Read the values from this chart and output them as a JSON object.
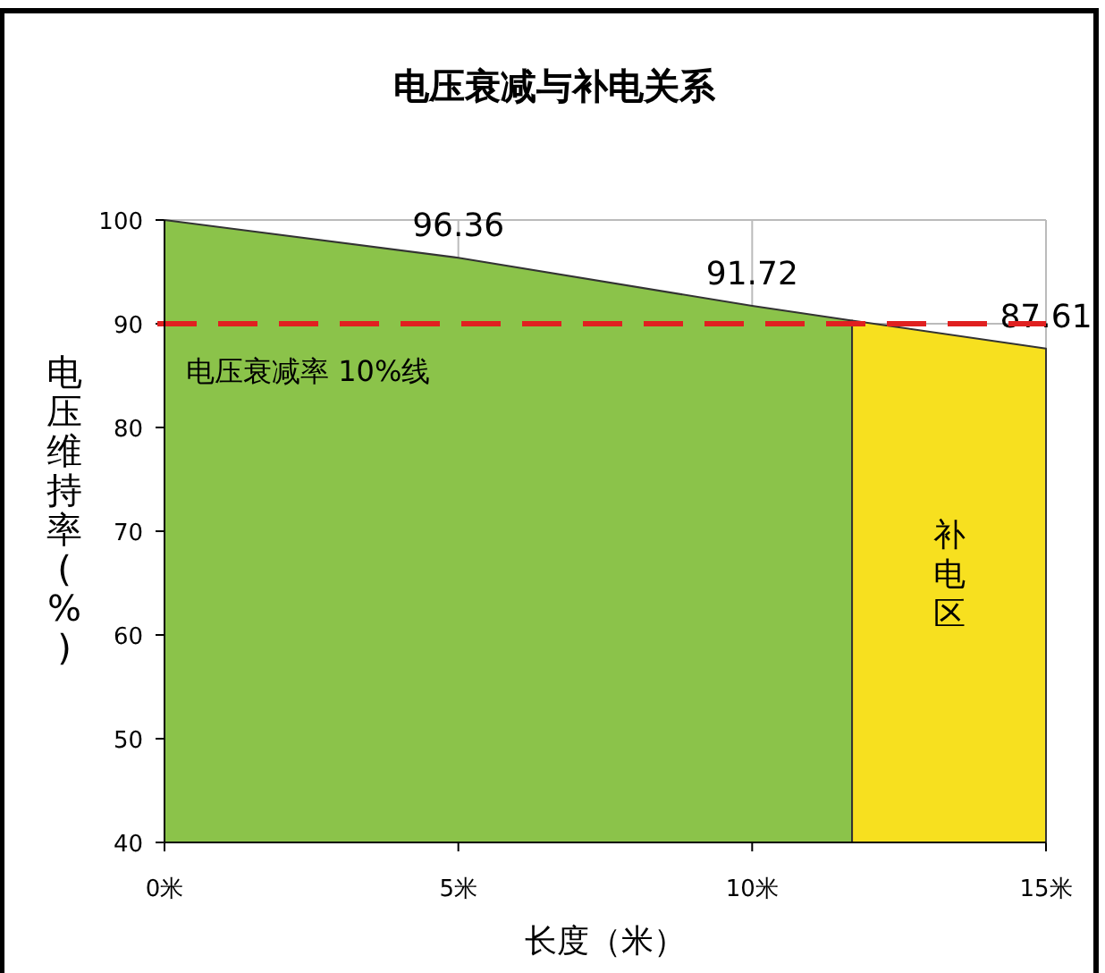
{
  "chart_data": {
    "type": "area",
    "title": "电压衰减与补电关系",
    "xlabel": "长度（米）",
    "ylabel": "电压维持率(%)",
    "xlim": [
      0,
      15
    ],
    "ylim": [
      40,
      100
    ],
    "xticks": [
      {
        "value": 0,
        "label": "0米"
      },
      {
        "value": 5,
        "label": "5米"
      },
      {
        "value": 10,
        "label": "10米"
      },
      {
        "value": 15,
        "label": "15米"
      }
    ],
    "yticks": [
      40,
      50,
      60,
      70,
      80,
      90,
      100
    ],
    "grid": true,
    "series": [
      {
        "color": "#8bc34a",
        "x": [
          0,
          5,
          10,
          11.7
        ],
        "values": [
          100,
          96.36,
          91.72,
          90.3
        ],
        "value_labels": [
          null,
          "96.36",
          "91.72",
          null
        ]
      },
      {
        "color": "#f7e01f",
        "x": [
          11.7,
          15
        ],
        "values": [
          90.3,
          87.61
        ],
        "value_labels": [
          null,
          "87.61"
        ]
      }
    ],
    "ref_lines": [
      {
        "axis": "y",
        "value": 90,
        "label": "电压衰减率 10%线",
        "color": "#e02020",
        "line_style": "dashed"
      }
    ],
    "annotations": [
      "补电区"
    ]
  }
}
